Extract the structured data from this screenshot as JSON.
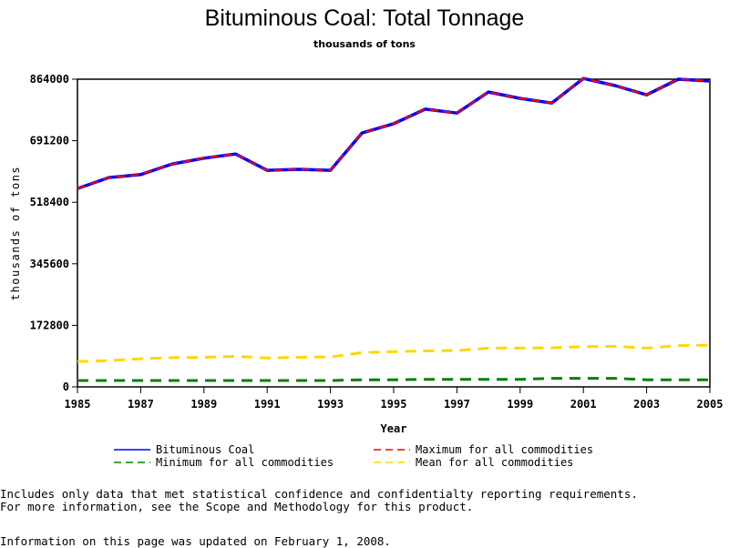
{
  "chart_data": {
    "type": "line",
    "title": "Bituminous Coal: Total Tonnage",
    "subtitle": "thousands of tons",
    "xlabel": "Year",
    "ylabel": "thousands of tons",
    "xlim": [
      1985,
      2005
    ],
    "ylim": [
      0,
      864000
    ],
    "x_ticks": [
      "1985",
      "1987",
      "1989",
      "1991",
      "1993",
      "1995",
      "1997",
      "1999",
      "2001",
      "2003",
      "2005"
    ],
    "y_ticks": [
      "0",
      "172800",
      "345600",
      "518400",
      "691200",
      "864000"
    ],
    "grid": false,
    "legend_position": "bottom",
    "x": [
      1985,
      1986,
      1987,
      1988,
      1989,
      1990,
      1991,
      1992,
      1993,
      1994,
      1995,
      1996,
      1997,
      1998,
      1999,
      2000,
      2001,
      2002,
      2003,
      2004,
      2005
    ],
    "series": [
      {
        "name": "Bituminous Coal",
        "color": "#0000ff",
        "dash": "solid",
        "values": [
          557000,
          588000,
          596000,
          626000,
          642000,
          654000,
          608000,
          611000,
          608000,
          713000,
          739000,
          780000,
          769000,
          828000,
          810000,
          797000,
          866000,
          846000,
          820000,
          864000,
          859000
        ]
      },
      {
        "name": "Maximum for all commodities",
        "color": "#ff0000",
        "dash": "dashed",
        "values": [
          557000,
          588000,
          596000,
          626000,
          642000,
          654000,
          608000,
          611000,
          608000,
          713000,
          739000,
          780000,
          769000,
          828000,
          810000,
          797000,
          866000,
          846000,
          820000,
          864000,
          859000
        ]
      },
      {
        "name": "Minimum for all commodities",
        "color": "#008000",
        "dash": "dashed",
        "values": [
          18000,
          18000,
          18000,
          18000,
          18000,
          18000,
          18000,
          18000,
          18000,
          20000,
          20000,
          21000,
          21000,
          21000,
          21000,
          24000,
          24000,
          24000,
          20000,
          20000,
          20000
        ]
      },
      {
        "name": "Mean for all commodities",
        "color": "#ffd700",
        "dash": "dashed",
        "values": [
          71000,
          74000,
          79000,
          82000,
          83000,
          86000,
          81000,
          83000,
          84000,
          96000,
          99000,
          101000,
          102000,
          109000,
          109000,
          110000,
          113000,
          114000,
          109000,
          116000,
          117000
        ]
      }
    ]
  },
  "notes": {
    "line1": "Includes only data that met statistical confidence and confidentialty reporting requirements.",
    "line2": "For more information, see the Scope and Methodology for this product.",
    "updated": "Information on this page was updated on February 1, 2008."
  }
}
